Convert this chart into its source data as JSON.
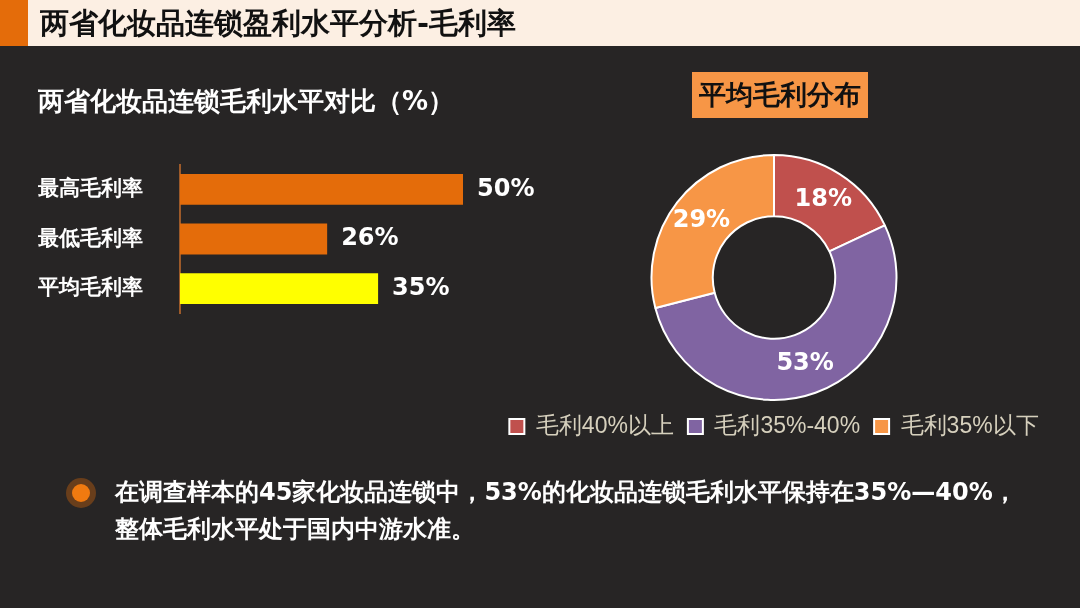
{
  "chart_data": [
    {
      "type": "other",
      "title": "两省化妆品连锁盈利水平分析-毛利率",
      "annotations": [
        "在调查样本的45家化妆品连锁中，53%的化妆品连锁毛利水平保持在35%—40%，整体毛利水平处于国内中游水准。"
      ]
    },
    {
      "type": "bar",
      "orientation": "horizontal",
      "title": "两省化妆品连锁毛利水平对比（%）",
      "categories": [
        "最高毛利率",
        "最低毛利率",
        "平均毛利率"
      ],
      "values": [
        50,
        26,
        35
      ],
      "colors": [
        "#e46c0a",
        "#e46c0a",
        "#ffff00"
      ],
      "value_labels": [
        "50%",
        "26%",
        "35%"
      ]
    },
    {
      "type": "donut",
      "title": "平均毛利分布",
      "categories": [
        "毛利40%以上",
        "毛利35%-40%",
        "毛利35%以下"
      ],
      "values": [
        18,
        53,
        29
      ],
      "colors": [
        "#c0504d",
        "#8064a2",
        "#f79646"
      ],
      "value_labels": [
        "18%",
        "53%",
        "29%"
      ],
      "legend": "bottom"
    }
  ]
}
